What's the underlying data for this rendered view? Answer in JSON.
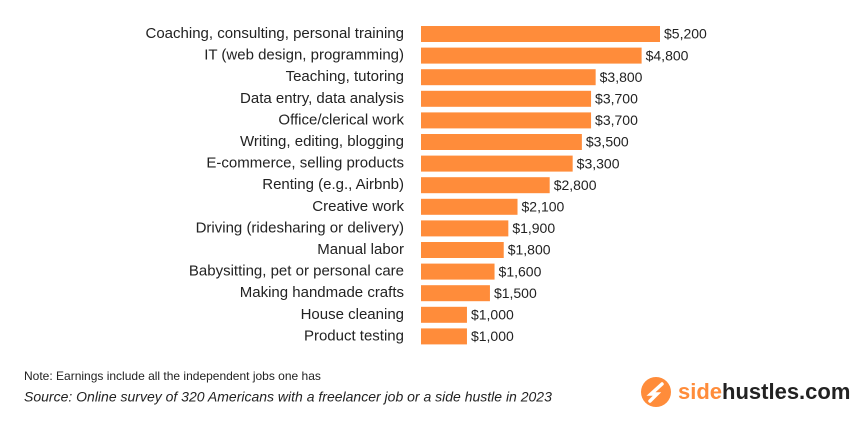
{
  "chart_data": {
    "type": "bar",
    "orientation": "horizontal",
    "categories": [
      "Coaching, consulting, personal training",
      "IT (web design, programming)",
      "Teaching, tutoring",
      "Data entry, data analysis",
      "Office/clerical work",
      "Writing, editing, blogging",
      "E-commerce, selling products",
      "Renting (e.g., Airbnb)",
      "Creative work",
      "Driving (ridesharing or delivery)",
      "Manual labor",
      "Babysitting, pet or personal care",
      "Making handmade crafts",
      "House cleaning",
      "Product testing"
    ],
    "values": [
      5200,
      4800,
      3800,
      3700,
      3700,
      3500,
      3300,
      2800,
      2100,
      1900,
      1800,
      1600,
      1500,
      1000,
      1000
    ],
    "value_labels": [
      "$5,200",
      "$4,800",
      "$3,800",
      "$3,700",
      "$3,700",
      "$3,500",
      "$3,300",
      "$2,800",
      "$2,100",
      "$1,900",
      "$1,800",
      "$1,600",
      "$1,500",
      "$1,000",
      "$1,000"
    ],
    "color": "#ff8c3a",
    "note": "Note: Earnings include all the independent jobs one has",
    "source": "Source: Online survey of 320 Americans with a freelancer job or a side hustle in 2023",
    "brand": [
      "side",
      "hustles.com"
    ]
  }
}
